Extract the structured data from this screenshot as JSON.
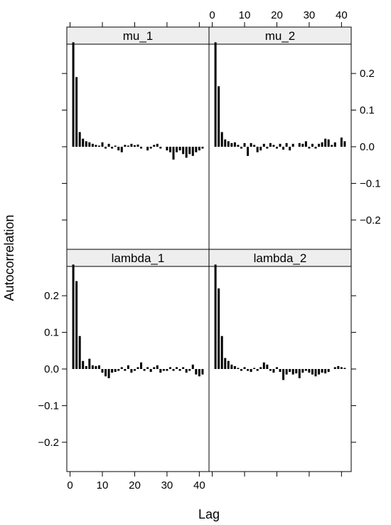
{
  "chart_data": {
    "type": "bar",
    "layout": "2x2 trellis",
    "xlabel": "Lag",
    "ylabel": "Autocorrelation",
    "xlim": [
      -1,
      43
    ],
    "ylim": [
      -0.28,
      0.28
    ],
    "x_ticks": [
      0,
      10,
      20,
      30,
      40
    ],
    "y_ticks": [
      -0.2,
      -0.1,
      0.0,
      0.1,
      0.2
    ],
    "x_tick_labels": [
      "0",
      "10",
      "20",
      "30",
      "40"
    ],
    "y_tick_labels": [
      "−0.2",
      "−0.1",
      "0.0",
      "0.1",
      "0.2"
    ],
    "strip_color": "#eeeeee",
    "bar_color": "#000000",
    "panels": [
      {
        "name": "mu_1",
        "position": "top-left",
        "lags": [
          1,
          2,
          3,
          4,
          5,
          6,
          7,
          8,
          9,
          10,
          11,
          12,
          13,
          14,
          15,
          16,
          17,
          18,
          19,
          20,
          21,
          22,
          23,
          24,
          25,
          26,
          27,
          28,
          29,
          30,
          31,
          32,
          33,
          34,
          35,
          36,
          37,
          38,
          39,
          40,
          41
        ],
        "values": [
          0.285,
          0.19,
          0.04,
          0.022,
          0.015,
          0.012,
          0.008,
          0.005,
          0.003,
          0.012,
          -0.005,
          0.008,
          -0.005,
          0.003,
          -0.01,
          -0.015,
          0.005,
          0.003,
          0.008,
          0.004,
          0.006,
          -0.005,
          0.0,
          -0.01,
          -0.005,
          0.005,
          0.008,
          -0.005,
          0.0,
          -0.01,
          -0.015,
          -0.035,
          -0.015,
          -0.01,
          -0.02,
          -0.03,
          -0.02,
          -0.025,
          -0.015,
          -0.01,
          -0.005
        ]
      },
      {
        "name": "mu_2",
        "position": "top-right",
        "lags": [
          1,
          2,
          3,
          4,
          5,
          6,
          7,
          8,
          9,
          10,
          11,
          12,
          13,
          14,
          15,
          16,
          17,
          18,
          19,
          20,
          21,
          22,
          23,
          24,
          25,
          26,
          27,
          28,
          29,
          30,
          31,
          32,
          33,
          34,
          35,
          36,
          37,
          38,
          39,
          40,
          41
        ],
        "values": [
          0.285,
          0.165,
          0.04,
          0.02,
          0.015,
          0.01,
          0.012,
          0.005,
          -0.005,
          0.01,
          -0.025,
          0.01,
          0.005,
          -0.015,
          -0.01,
          0.008,
          -0.005,
          0.01,
          0.005,
          -0.005,
          0.008,
          -0.008,
          0.01,
          -0.01,
          0.008,
          0.0,
          0.01,
          0.008,
          0.015,
          -0.005,
          0.008,
          -0.005,
          0.008,
          0.012,
          0.022,
          0.02,
          0.005,
          0.012,
          0.0,
          0.025,
          0.015
        ]
      },
      {
        "name": "lambda_1",
        "position": "bottom-left",
        "lags": [
          1,
          2,
          3,
          4,
          5,
          6,
          7,
          8,
          9,
          10,
          11,
          12,
          13,
          14,
          15,
          16,
          17,
          18,
          19,
          20,
          21,
          22,
          23,
          24,
          25,
          26,
          27,
          28,
          29,
          30,
          31,
          32,
          33,
          34,
          35,
          36,
          37,
          38,
          39,
          40,
          41
        ],
        "values": [
          0.285,
          0.24,
          0.09,
          0.022,
          0.008,
          0.028,
          0.01,
          0.008,
          0.01,
          -0.01,
          -0.02,
          -0.025,
          -0.01,
          -0.008,
          -0.005,
          0.005,
          -0.005,
          0.01,
          -0.01,
          -0.005,
          0.005,
          0.018,
          -0.005,
          0.005,
          -0.008,
          0.005,
          0.01,
          -0.01,
          -0.005,
          -0.005,
          0.005,
          -0.005,
          0.005,
          -0.005,
          0.005,
          -0.01,
          -0.005,
          0.012,
          -0.015,
          -0.02,
          -0.015
        ]
      },
      {
        "name": "lambda_2",
        "position": "bottom-right",
        "lags": [
          1,
          2,
          3,
          4,
          5,
          6,
          7,
          8,
          9,
          10,
          11,
          12,
          13,
          14,
          15,
          16,
          17,
          18,
          19,
          20,
          21,
          22,
          23,
          24,
          25,
          26,
          27,
          28,
          29,
          30,
          31,
          32,
          33,
          34,
          35,
          36,
          37,
          38,
          39,
          40,
          41
        ],
        "values": [
          0.285,
          0.22,
          0.09,
          0.03,
          0.022,
          0.012,
          0.008,
          0.003,
          -0.005,
          0.005,
          -0.005,
          -0.008,
          0.003,
          -0.005,
          0.005,
          0.018,
          0.012,
          -0.005,
          -0.01,
          0.005,
          -0.008,
          -0.03,
          -0.015,
          -0.008,
          -0.015,
          -0.012,
          -0.025,
          -0.01,
          -0.005,
          -0.01,
          -0.015,
          -0.02,
          -0.015,
          -0.01,
          -0.012,
          -0.008,
          0.0,
          0.005,
          0.008,
          0.005,
          0.003
        ]
      }
    ]
  }
}
